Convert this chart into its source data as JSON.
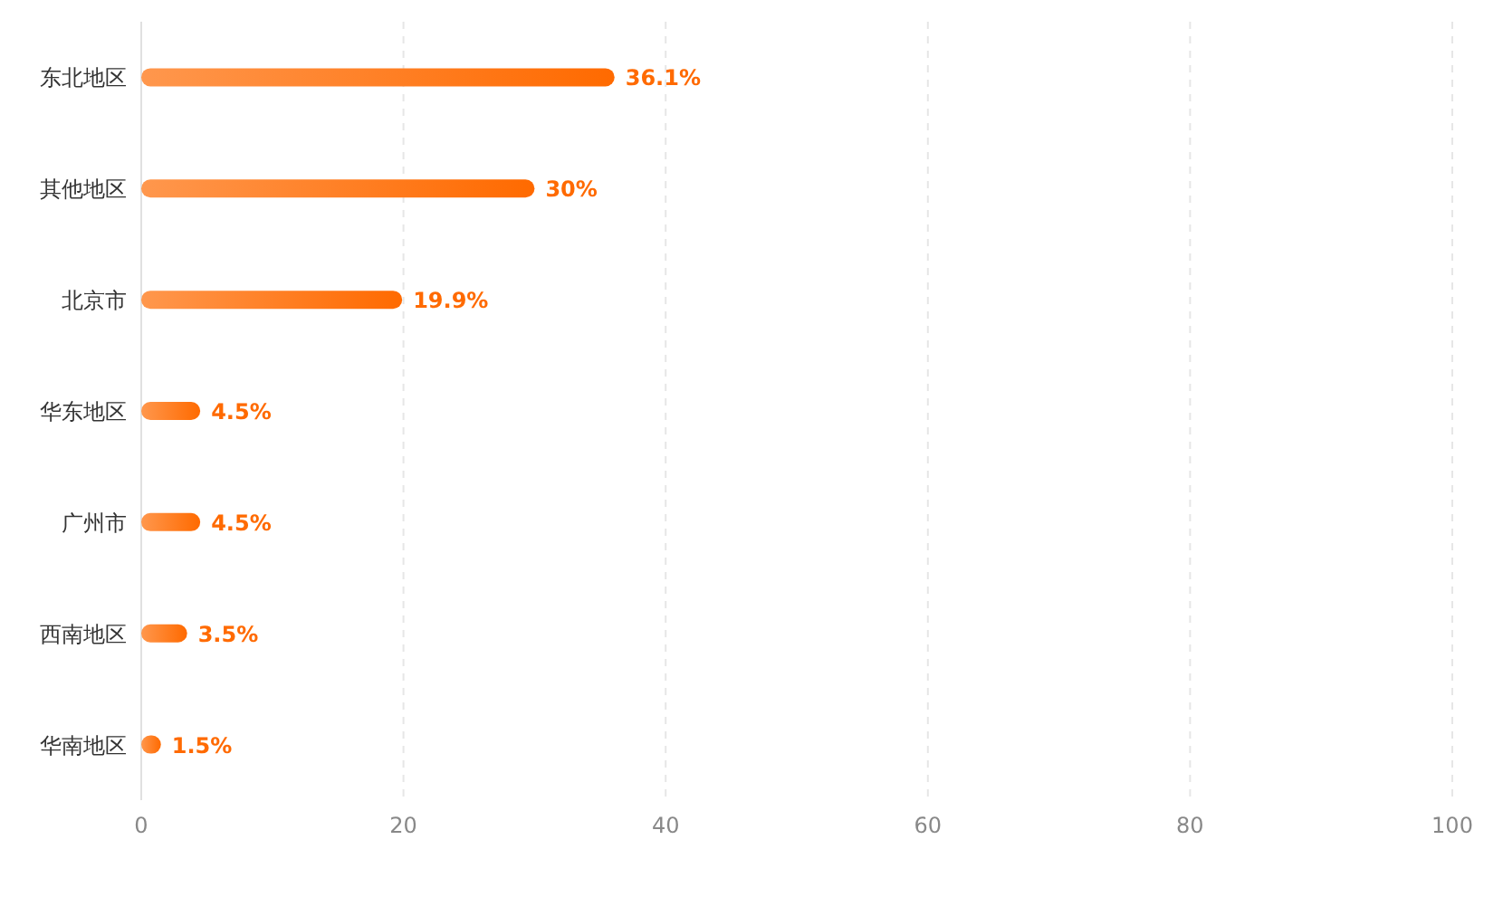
{
  "chart_data": {
    "type": "bar",
    "orientation": "horizontal",
    "categories": [
      "东北地区",
      "其他地区",
      "北京市",
      "华东地区",
      "广州市",
      "西南地区",
      "华南地区"
    ],
    "values": [
      36.1,
      30,
      19.9,
      4.5,
      4.5,
      3.5,
      1.5
    ],
    "value_labels": [
      "36.1%",
      "30%",
      "19.9%",
      "4.5%",
      "4.5%",
      "3.5%",
      "1.5%"
    ],
    "color": "#ff6a00",
    "xlim": [
      0,
      100
    ],
    "xticks": [
      0,
      20,
      40,
      60,
      80,
      100
    ],
    "grid": "x"
  }
}
